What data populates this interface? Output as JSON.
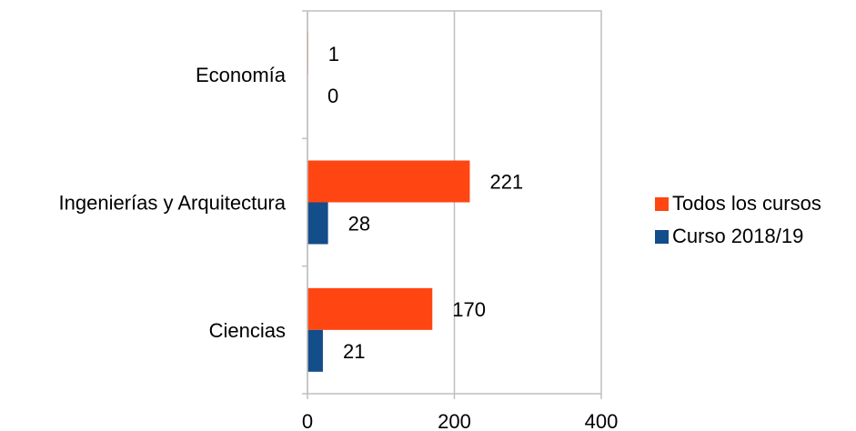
{
  "chart_data": {
    "type": "bar",
    "orientation": "horizontal",
    "categories": [
      "Economía",
      "Ingenierías y Arquitectura",
      "Ciencias"
    ],
    "series": [
      {
        "name": "Todos los cursos",
        "values": [
          1,
          221,
          170
        ],
        "color": "#FF4612"
      },
      {
        "name": "Curso 2018/19",
        "values": [
          0,
          28,
          21
        ],
        "color": "#134D8A"
      }
    ],
    "xlim": [
      0,
      400
    ],
    "xticks": [
      0,
      200,
      400
    ],
    "grid": true,
    "legend_position": "right"
  }
}
